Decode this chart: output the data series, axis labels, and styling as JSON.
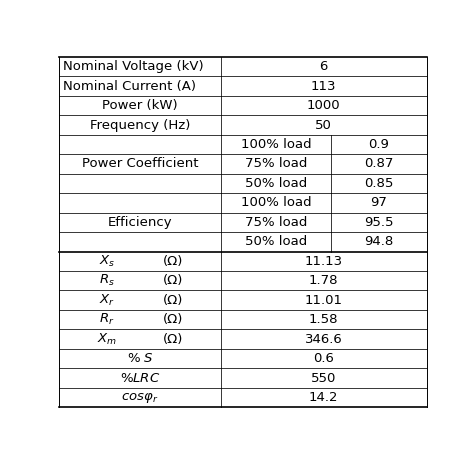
{
  "bg_color": "#ffffff",
  "line_color": "#000000",
  "text_color": "#000000",
  "figsize": [
    4.74,
    4.74
  ],
  "dpi": 100,
  "c1": 0.44,
  "c2": 0.74,
  "c3": 1.0,
  "fs": 9.5,
  "fs_param": 9.5,
  "simple_rows": [
    {
      "label": "Nominal Voltage (kV)",
      "value": "6"
    },
    {
      "label": "Nominal Current (A)",
      "value": "113"
    },
    {
      "label": "Power (kW)",
      "value": "1000"
    },
    {
      "label": "Frequency (Hz)",
      "value": "50"
    }
  ],
  "pc_label": "Power Coefficient",
  "pc_rows": [
    {
      "load": "100% load",
      "value": "0.9"
    },
    {
      "load": "75% load",
      "value": "0.87"
    },
    {
      "load": "50% load",
      "value": "0.85"
    }
  ],
  "eff_label": "Efficiency",
  "eff_rows": [
    {
      "load": "100% load",
      "value": "97"
    },
    {
      "load": "75% load",
      "value": "95.5"
    },
    {
      "load": "50% load",
      "value": "94.8"
    }
  ],
  "param_rows": [
    {
      "label": "$X_s$",
      "unit": "(Ω)",
      "value": "11.13"
    },
    {
      "label": "$R_s$",
      "unit": "(Ω)",
      "value": "1.78"
    },
    {
      "label": "$X_r$",
      "unit": "(Ω)",
      "value": "11.01"
    },
    {
      "label": "$R_r$",
      "unit": "(Ω)",
      "value": "1.58"
    },
    {
      "label": "$X_m$",
      "unit": "(Ω)",
      "value": "346.6"
    },
    {
      "label": "$\\%\\ S$",
      "unit": null,
      "value": "0.6"
    },
    {
      "label": "$\\%LRC$",
      "unit": null,
      "value": "550"
    },
    {
      "label": "$cos\\varphi_r$",
      "unit": null,
      "value": "14.2"
    }
  ]
}
